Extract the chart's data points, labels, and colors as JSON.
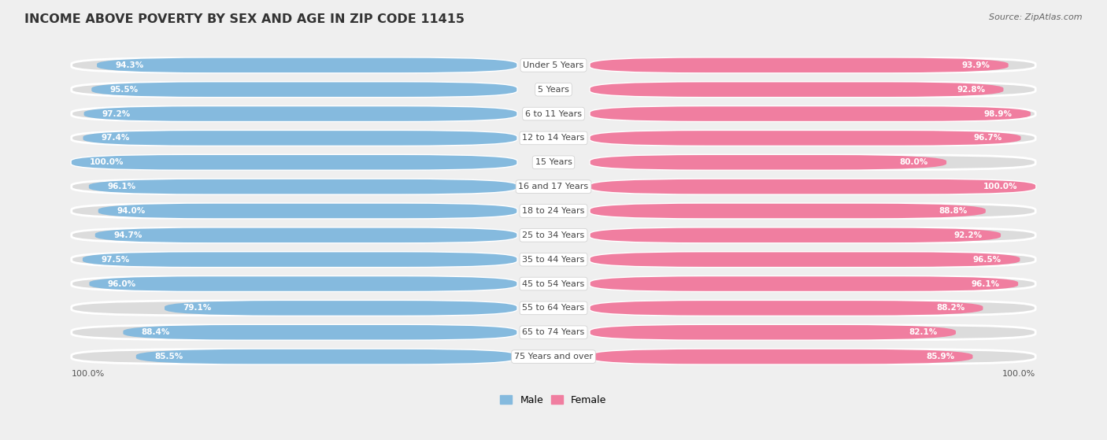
{
  "title": "INCOME ABOVE POVERTY BY SEX AND AGE IN ZIP CODE 11415",
  "source": "Source: ZipAtlas.com",
  "categories": [
    "Under 5 Years",
    "5 Years",
    "6 to 11 Years",
    "12 to 14 Years",
    "15 Years",
    "16 and 17 Years",
    "18 to 24 Years",
    "25 to 34 Years",
    "35 to 44 Years",
    "45 to 54 Years",
    "55 to 64 Years",
    "65 to 74 Years",
    "75 Years and over"
  ],
  "male_values": [
    94.3,
    95.5,
    97.2,
    97.4,
    100.0,
    96.1,
    94.0,
    94.7,
    97.5,
    96.0,
    79.1,
    88.4,
    85.5
  ],
  "female_values": [
    93.9,
    92.8,
    98.9,
    96.7,
    80.0,
    100.0,
    88.8,
    92.2,
    96.5,
    96.1,
    88.2,
    82.1,
    85.9
  ],
  "male_color": "#85BADE",
  "female_color": "#F07EA0",
  "male_color_light": "#B8D5EA",
  "female_color_light": "#F5AABF",
  "bg_color": "#EFEFEF",
  "row_bg_color": "#DCDCDC",
  "label_bg_color": "#FFFFFF",
  "white_gap": "#FFFFFF",
  "title_fontsize": 11.5,
  "label_fontsize": 8.0,
  "value_fontsize": 7.5,
  "legend_fontsize": 9,
  "source_fontsize": 8
}
